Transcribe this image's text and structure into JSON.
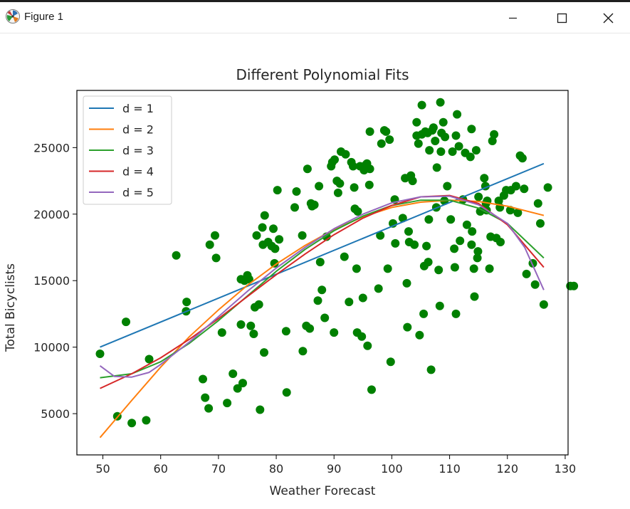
{
  "window": {
    "title": "Figure 1",
    "icon": "matplotlib-icon",
    "controls": [
      "minimize-icon",
      "maximize-icon",
      "close-icon"
    ]
  },
  "chart_data": {
    "type": "scatter",
    "title": "Different Polynomial Fits",
    "xlabel": "Weather Forecast",
    "ylabel": "Total Bicyclists",
    "xlim": [
      45.5,
      130.5
    ],
    "ylim": [
      1900,
      29300
    ],
    "x_ticks": [
      50,
      60,
      70,
      80,
      90,
      100,
      110,
      120,
      130
    ],
    "y_ticks": [
      5000,
      10000,
      15000,
      20000,
      25000
    ],
    "grid": false,
    "legend_position": "top-left",
    "scatter": {
      "color": "#008000",
      "points": [
        [
          49.5,
          9500
        ],
        [
          52.5,
          4800
        ],
        [
          54,
          11900
        ],
        [
          55,
          4300
        ],
        [
          57.5,
          4500
        ],
        [
          58,
          9100
        ],
        [
          62.7,
          16900
        ],
        [
          64.4,
          12700
        ],
        [
          64.5,
          13400
        ],
        [
          67.3,
          7600
        ],
        [
          67.7,
          6200
        ],
        [
          68.3,
          5400
        ],
        [
          68.5,
          17700
        ],
        [
          69.4,
          18400
        ],
        [
          69.6,
          16700
        ],
        [
          70.6,
          11100
        ],
        [
          71.5,
          5800
        ],
        [
          72.5,
          8000
        ],
        [
          73.3,
          6900
        ],
        [
          73.9,
          11700
        ],
        [
          73.9,
          15100
        ],
        [
          74.2,
          7300
        ],
        [
          74.5,
          15000
        ],
        [
          75,
          15400
        ],
        [
          75.3,
          15100
        ],
        [
          75.6,
          11600
        ],
        [
          76.1,
          11000
        ],
        [
          76.3,
          13000
        ],
        [
          76.6,
          18400
        ],
        [
          77,
          13200
        ],
        [
          77.2,
          5300
        ],
        [
          77.6,
          19000
        ],
        [
          77.7,
          17700
        ],
        [
          77.9,
          9600
        ],
        [
          78,
          19900
        ],
        [
          78.6,
          17900
        ],
        [
          79.2,
          17600
        ],
        [
          79.5,
          18900
        ],
        [
          79.7,
          16300
        ],
        [
          79.8,
          17400
        ],
        [
          80.2,
          21800
        ],
        [
          80.5,
          18100
        ],
        [
          81.7,
          11200
        ],
        [
          81.8,
          6600
        ],
        [
          83.2,
          20500
        ],
        [
          83.5,
          21700
        ],
        [
          84.5,
          18400
        ],
        [
          84.6,
          9700
        ],
        [
          85.2,
          11600
        ],
        [
          85.4,
          23400
        ],
        [
          85.8,
          11400
        ],
        [
          86,
          20800
        ],
        [
          86.2,
          20600
        ],
        [
          86.6,
          20700
        ],
        [
          87.2,
          13500
        ],
        [
          87.4,
          22100
        ],
        [
          87.6,
          16400
        ],
        [
          87.9,
          14300
        ],
        [
          88.4,
          12200
        ],
        [
          88.7,
          18300
        ],
        [
          89.5,
          23600
        ],
        [
          89.7,
          23900
        ],
        [
          90,
          11100
        ],
        [
          90.1,
          24100
        ],
        [
          90.5,
          22500
        ],
        [
          90.7,
          21600
        ],
        [
          91,
          22300
        ],
        [
          91.2,
          24700
        ],
        [
          91.8,
          16800
        ],
        [
          92,
          24500
        ],
        [
          92.6,
          13400
        ],
        [
          93,
          23900
        ],
        [
          93.3,
          23600
        ],
        [
          93.5,
          22000
        ],
        [
          93.6,
          20400
        ],
        [
          93.9,
          15900
        ],
        [
          94,
          11100
        ],
        [
          94.1,
          20200
        ],
        [
          94.5,
          23600
        ],
        [
          94.8,
          10800
        ],
        [
          95,
          13700
        ],
        [
          95.2,
          23300
        ],
        [
          95.5,
          23700
        ],
        [
          95.8,
          10100
        ],
        [
          95.7,
          23800
        ],
        [
          96.1,
          22200
        ],
        [
          96.2,
          23400
        ],
        [
          96.5,
          6800
        ],
        [
          96.2,
          26200
        ],
        [
          97.7,
          14400
        ],
        [
          98,
          18400
        ],
        [
          98.2,
          25300
        ],
        [
          98.7,
          26300
        ],
        [
          99,
          26200
        ],
        [
          99.3,
          15900
        ],
        [
          99.6,
          25600
        ],
        [
          99.8,
          8900
        ],
        [
          100.2,
          19300
        ],
        [
          100.5,
          21100
        ],
        [
          100.6,
          17800
        ],
        [
          101.9,
          19700
        ],
        [
          102.3,
          22700
        ],
        [
          102.6,
          14800
        ],
        [
          102.7,
          11500
        ],
        [
          102.9,
          18700
        ],
        [
          103,
          17900
        ],
        [
          103.3,
          22900
        ],
        [
          103.6,
          22500
        ],
        [
          103.9,
          17700
        ],
        [
          104.3,
          26900
        ],
        [
          104.3,
          25900
        ],
        [
          104.6,
          25300
        ],
        [
          104.8,
          10900
        ],
        [
          105.2,
          28200
        ],
        [
          105.2,
          26000
        ],
        [
          105.5,
          12500
        ],
        [
          105.6,
          16100
        ],
        [
          105.8,
          26200
        ],
        [
          106,
          17600
        ],
        [
          106.2,
          26100
        ],
        [
          106.3,
          16400
        ],
        [
          106.4,
          19600
        ],
        [
          106.5,
          24800
        ],
        [
          106.8,
          8300
        ],
        [
          107,
          26300
        ],
        [
          107.2,
          26500
        ],
        [
          107.5,
          25500
        ],
        [
          107.7,
          20500
        ],
        [
          107.8,
          23500
        ],
        [
          108.1,
          15800
        ],
        [
          108.3,
          13100
        ],
        [
          108.4,
          28400
        ],
        [
          108.5,
          24700
        ],
        [
          108.6,
          26100
        ],
        [
          108.9,
          26900
        ],
        [
          109.2,
          25800
        ],
        [
          109.1,
          21000
        ],
        [
          109.6,
          22100
        ],
        [
          110.2,
          19600
        ],
        [
          110.5,
          24700
        ],
        [
          110.8,
          17400
        ],
        [
          110.9,
          16000
        ],
        [
          111.1,
          12500
        ],
        [
          111.1,
          25900
        ],
        [
          111.3,
          27500
        ],
        [
          111.6,
          25100
        ],
        [
          111.8,
          18000
        ],
        [
          112.3,
          21100
        ],
        [
          112.7,
          24600
        ],
        [
          113,
          19200
        ],
        [
          113.6,
          24300
        ],
        [
          113.8,
          17700
        ],
        [
          113.8,
          26400
        ],
        [
          113.9,
          18700
        ],
        [
          114.2,
          15900
        ],
        [
          114.3,
          13800
        ],
        [
          114.6,
          24800
        ],
        [
          114.8,
          16700
        ],
        [
          114.9,
          17200
        ],
        [
          115,
          21300
        ],
        [
          115.3,
          20200
        ],
        [
          116,
          22700
        ],
        [
          116.2,
          22100
        ],
        [
          116.3,
          20800
        ],
        [
          116.4,
          20300
        ],
        [
          116.5,
          21000
        ],
        [
          116.9,
          15900
        ],
        [
          117.1,
          18300
        ],
        [
          117.4,
          25500
        ],
        [
          117.7,
          26000
        ],
        [
          118.1,
          18200
        ],
        [
          118.5,
          21000
        ],
        [
          118.7,
          20500
        ],
        [
          118.8,
          17900
        ],
        [
          119.4,
          21400
        ],
        [
          119.8,
          21800
        ],
        [
          120.5,
          20300
        ],
        [
          120.6,
          21800
        ],
        [
          121.5,
          22100
        ],
        [
          121.8,
          20100
        ],
        [
          122.2,
          24400
        ],
        [
          122.6,
          24200
        ],
        [
          122.9,
          21900
        ],
        [
          123.3,
          15500
        ],
        [
          124.4,
          16300
        ],
        [
          124.8,
          14700
        ],
        [
          125.3,
          20800
        ],
        [
          125.7,
          19300
        ],
        [
          126.3,
          13200
        ],
        [
          127,
          22000
        ],
        [
          130.9,
          14600
        ],
        [
          131.5,
          14600
        ]
      ]
    },
    "series": [
      {
        "name": "d = 1",
        "color": "#1f77b4",
        "x": [
          49.5,
          126.3
        ],
        "y": [
          10000,
          23800
        ]
      },
      {
        "name": "d = 2",
        "color": "#ff7f0e",
        "x": [
          49.5,
          55,
          60,
          65,
          70,
          75,
          80,
          85,
          90,
          95,
          100,
          105,
          110,
          115,
          120,
          126.3
        ],
        "y": [
          3200,
          6000,
          8500,
          10800,
          12800,
          14650,
          16250,
          17650,
          18850,
          19800,
          20500,
          20900,
          21050,
          20950,
          20600,
          19900
        ]
      },
      {
        "name": "d = 3",
        "color": "#2ca02c",
        "x": [
          49.5,
          55,
          60,
          65,
          70,
          75,
          80,
          85,
          90,
          95,
          100,
          105,
          110,
          115,
          120,
          126.3
        ],
        "y": [
          7700,
          8000,
          8900,
          10300,
          12000,
          13850,
          15700,
          17350,
          18750,
          19850,
          20650,
          21050,
          21050,
          20450,
          19300,
          16700
        ]
      },
      {
        "name": "d = 4",
        "color": "#d62728",
        "x": [
          49.5,
          55,
          60,
          65,
          70,
          75,
          80,
          85,
          90,
          95,
          100,
          105,
          110,
          115,
          120,
          126.3
        ],
        "y": [
          6900,
          8000,
          9200,
          10600,
          12150,
          13800,
          15450,
          17000,
          18450,
          19700,
          20650,
          21300,
          21400,
          20800,
          19200,
          16000
        ]
      },
      {
        "name": "d = 5",
        "color": "#9467bd",
        "x": [
          49.5,
          52,
          55,
          58,
          60,
          65,
          70,
          75,
          80,
          85,
          90,
          95,
          100,
          105,
          110,
          115,
          120,
          123,
          126.3
        ],
        "y": [
          8600,
          7800,
          7750,
          8100,
          8700,
          10400,
          12300,
          14200,
          15950,
          17500,
          18900,
          20000,
          20850,
          21300,
          21350,
          20700,
          19300,
          17500,
          14300
        ]
      }
    ]
  }
}
